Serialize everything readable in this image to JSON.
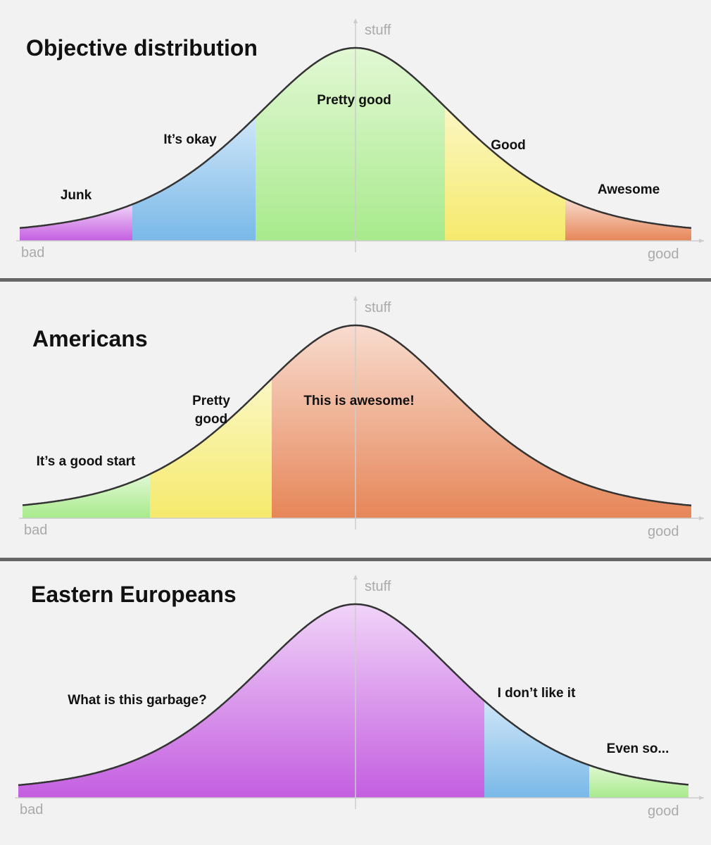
{
  "panels": [
    {
      "title": "Objective distribution",
      "y_axis_label": "stuff",
      "x_axis_start": "bad",
      "x_axis_end": "good",
      "segments": [
        {
          "label": "Junk"
        },
        {
          "label": "It’s okay"
        },
        {
          "label": "Pretty good"
        },
        {
          "label": "Good"
        },
        {
          "label": "Awesome"
        }
      ]
    },
    {
      "title": "Americans",
      "y_axis_label": "stuff",
      "x_axis_start": "bad",
      "x_axis_end": "good",
      "segments": [
        {
          "label": "It’s a good start"
        },
        {
          "label": "Pretty good"
        },
        {
          "label": "This is awesome!"
        }
      ]
    },
    {
      "title": "Eastern Europeans",
      "y_axis_label": "stuff",
      "x_axis_start": "bad",
      "x_axis_end": "good",
      "segments": [
        {
          "label": "What is this garbage?"
        },
        {
          "label": "I don’t like it"
        },
        {
          "label": "Even so..."
        }
      ]
    }
  ]
}
